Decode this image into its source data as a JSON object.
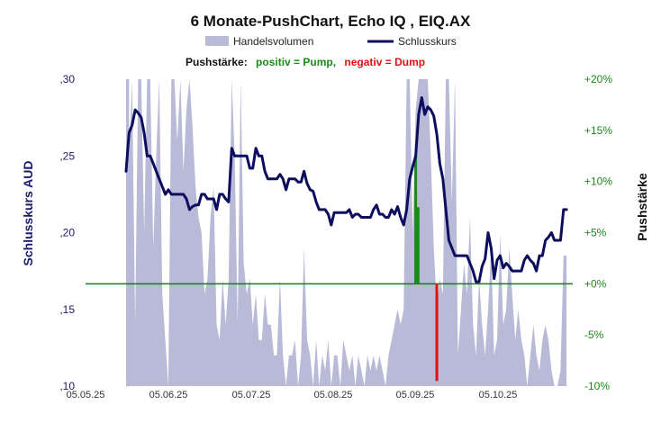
{
  "title": "6 Monate-PushChart,  Echo IQ , EIQ.AX",
  "legend": {
    "volume_label": "Handelsvolumen",
    "price_label": "Schlusskurs",
    "volume_color": "#b9b9d8",
    "price_color": "#0d0d5e"
  },
  "push_legend": {
    "prefix": "Pushstärke:",
    "positive": "positiv = Pump,",
    "negative": "negativ = Dump",
    "positive_color": "#1a8a1a",
    "negative_color": "#e01010"
  },
  "chart_data": {
    "type": "line",
    "title": "6 Monate-PushChart,  Echo IQ , EIQ.AX",
    "ylabel": "Schlusskurs AUD",
    "y2label": "Pushstärke",
    "ylim": [
      0.1,
      0.3
    ],
    "y2lim": [
      -10,
      20
    ],
    "yticks": [
      ",10",
      ",15",
      ",20",
      ",25",
      ",30"
    ],
    "y2ticks": [
      "-10%",
      "-5%",
      "+0%",
      "+5%",
      "+10%",
      "+15%",
      "+20%"
    ],
    "x_ticks": [
      "05.05.25",
      "05.06.25",
      "05.07.25",
      "05.08.25",
      "05.09.25",
      "05.10.25"
    ],
    "zero_line_color": "#1a7a1a",
    "series": [
      {
        "name": "Schlusskurs",
        "type": "line",
        "points": [
          [
            0,
            0.24
          ],
          [
            1,
            0.265
          ],
          [
            2,
            0.27
          ],
          [
            3,
            0.28
          ],
          [
            4,
            0.278
          ],
          [
            5,
            0.275
          ],
          [
            6,
            0.265
          ],
          [
            7,
            0.25
          ],
          [
            8,
            0.25
          ],
          [
            9,
            0.245
          ],
          [
            10,
            0.24
          ],
          [
            11,
            0.235
          ],
          [
            12,
            0.23
          ],
          [
            13,
            0.225
          ],
          [
            14,
            0.228
          ],
          [
            15,
            0.225
          ],
          [
            16,
            0.225
          ],
          [
            17,
            0.225
          ],
          [
            18,
            0.225
          ],
          [
            19,
            0.225
          ],
          [
            20,
            0.222
          ],
          [
            21,
            0.215
          ],
          [
            22,
            0.217
          ],
          [
            23,
            0.218
          ],
          [
            24,
            0.218
          ],
          [
            25,
            0.225
          ],
          [
            26,
            0.225
          ],
          [
            27,
            0.222
          ],
          [
            28,
            0.222
          ],
          [
            29,
            0.222
          ],
          [
            30,
            0.215
          ],
          [
            31,
            0.225
          ],
          [
            32,
            0.225
          ],
          [
            33,
            0.222
          ],
          [
            34,
            0.22
          ],
          [
            35,
            0.255
          ],
          [
            36,
            0.25
          ],
          [
            37,
            0.25
          ],
          [
            38,
            0.25
          ],
          [
            39,
            0.25
          ],
          [
            40,
            0.25
          ],
          [
            41,
            0.242
          ],
          [
            42,
            0.242
          ],
          [
            43,
            0.255
          ],
          [
            44,
            0.25
          ],
          [
            45,
            0.25
          ],
          [
            46,
            0.24
          ],
          [
            47,
            0.235
          ],
          [
            48,
            0.235
          ],
          [
            49,
            0.235
          ],
          [
            50,
            0.235
          ],
          [
            51,
            0.238
          ],
          [
            52,
            0.235
          ],
          [
            53,
            0.228
          ],
          [
            54,
            0.235
          ],
          [
            55,
            0.235
          ],
          [
            56,
            0.235
          ],
          [
            57,
            0.233
          ],
          [
            58,
            0.233
          ],
          [
            59,
            0.24
          ],
          [
            60,
            0.232
          ],
          [
            61,
            0.228
          ],
          [
            62,
            0.227
          ],
          [
            63,
            0.22
          ],
          [
            64,
            0.215
          ],
          [
            65,
            0.215
          ],
          [
            66,
            0.215
          ],
          [
            67,
            0.212
          ],
          [
            68,
            0.205
          ],
          [
            69,
            0.213
          ],
          [
            70,
            0.213
          ],
          [
            71,
            0.213
          ],
          [
            72,
            0.213
          ],
          [
            73,
            0.213
          ],
          [
            74,
            0.215
          ],
          [
            75,
            0.21
          ],
          [
            76,
            0.212
          ],
          [
            77,
            0.212
          ],
          [
            78,
            0.21
          ],
          [
            79,
            0.21
          ],
          [
            80,
            0.21
          ],
          [
            81,
            0.21
          ],
          [
            82,
            0.215
          ],
          [
            83,
            0.218
          ],
          [
            84,
            0.212
          ],
          [
            85,
            0.212
          ],
          [
            86,
            0.21
          ],
          [
            87,
            0.21
          ],
          [
            88,
            0.215
          ],
          [
            89,
            0.212
          ],
          [
            90,
            0.217
          ],
          [
            91,
            0.21
          ],
          [
            92,
            0.205
          ],
          [
            93,
            0.215
          ],
          [
            94,
            0.235
          ],
          [
            95,
            0.243
          ],
          [
            96,
            0.25
          ],
          [
            97,
            0.277
          ],
          [
            98,
            0.288
          ],
          [
            99,
            0.277
          ],
          [
            100,
            0.282
          ],
          [
            101,
            0.28
          ],
          [
            102,
            0.276
          ],
          [
            103,
            0.264
          ],
          [
            104,
            0.245
          ],
          [
            105,
            0.235
          ],
          [
            106,
            0.215
          ],
          [
            107,
            0.195
          ],
          [
            108,
            0.19
          ],
          [
            109,
            0.185
          ],
          [
            110,
            0.185
          ],
          [
            111,
            0.185
          ],
          [
            112,
            0.185
          ],
          [
            113,
            0.185
          ],
          [
            114,
            0.18
          ],
          [
            115,
            0.175
          ],
          [
            116,
            0.168
          ],
          [
            117,
            0.168
          ],
          [
            118,
            0.178
          ],
          [
            119,
            0.183
          ],
          [
            120,
            0.2
          ],
          [
            121,
            0.19
          ],
          [
            122,
            0.17
          ],
          [
            123,
            0.182
          ],
          [
            124,
            0.185
          ],
          [
            125,
            0.177
          ],
          [
            126,
            0.18
          ],
          [
            127,
            0.178
          ],
          [
            128,
            0.175
          ],
          [
            129,
            0.175
          ],
          [
            130,
            0.175
          ],
          [
            131,
            0.175
          ],
          [
            132,
            0.182
          ],
          [
            133,
            0.185
          ],
          [
            134,
            0.182
          ],
          [
            135,
            0.18
          ],
          [
            136,
            0.175
          ],
          [
            137,
            0.185
          ],
          [
            138,
            0.185
          ],
          [
            139,
            0.195
          ],
          [
            140,
            0.197
          ],
          [
            141,
            0.2
          ],
          [
            142,
            0.195
          ],
          [
            143,
            0.195
          ],
          [
            144,
            0.195
          ],
          [
            145,
            0.215
          ],
          [
            146,
            0.215
          ]
        ]
      },
      {
        "name": "Handelsvolumen",
        "type": "area",
        "points": [
          [
            0,
            0.1
          ],
          [
            0,
            0.3
          ],
          [
            1,
            0.3
          ],
          [
            1,
            0.25
          ],
          [
            2,
            0.3
          ],
          [
            3,
            0.14
          ],
          [
            4,
            0.3
          ],
          [
            5,
            0.3
          ],
          [
            6,
            0.2
          ],
          [
            7,
            0.3
          ],
          [
            8,
            0.3
          ],
          [
            9,
            0.19
          ],
          [
            10,
            0.25
          ],
          [
            11,
            0.3
          ],
          [
            12,
            0.16
          ],
          [
            13,
            0.13
          ],
          [
            14,
            0.1
          ],
          [
            15,
            0.3
          ],
          [
            16,
            0.3
          ],
          [
            17,
            0.26
          ],
          [
            18,
            0.3
          ],
          [
            19,
            0.24
          ],
          [
            20,
            0.28
          ],
          [
            21,
            0.3
          ],
          [
            22,
            0.27
          ],
          [
            23,
            0.23
          ],
          [
            24,
            0.21
          ],
          [
            25,
            0.2
          ],
          [
            26,
            0.16
          ],
          [
            27,
            0.17
          ],
          [
            28,
            0.21
          ],
          [
            29,
            0.23
          ],
          [
            30,
            0.14
          ],
          [
            31,
            0.13
          ],
          [
            32,
            0.17
          ],
          [
            33,
            0.14
          ],
          [
            34,
            0.17
          ],
          [
            35,
            0.3
          ],
          [
            36,
            0.25
          ],
          [
            37,
            0.14
          ],
          [
            38,
            0.3
          ],
          [
            39,
            0.18
          ],
          [
            40,
            0.16
          ],
          [
            41,
            0.17
          ],
          [
            42,
            0.14
          ],
          [
            43,
            0.16
          ],
          [
            44,
            0.13
          ],
          [
            45,
            0.13
          ],
          [
            46,
            0.16
          ],
          [
            47,
            0.14
          ],
          [
            48,
            0.14
          ],
          [
            49,
            0.12
          ],
          [
            50,
            0.12
          ],
          [
            51,
            0.17
          ],
          [
            52,
            0.12
          ],
          [
            53,
            0.1
          ],
          [
            54,
            0.12
          ],
          [
            55,
            0.12
          ],
          [
            56,
            0.13
          ],
          [
            57,
            0.1
          ],
          [
            58,
            0.12
          ],
          [
            59,
            0.19
          ],
          [
            60,
            0.13
          ],
          [
            61,
            0.12
          ],
          [
            62,
            0.1
          ],
          [
            63,
            0.13
          ],
          [
            64,
            0.1
          ],
          [
            65,
            0.12
          ],
          [
            66,
            0.11
          ],
          [
            67,
            0.13
          ],
          [
            68,
            0.1
          ],
          [
            69,
            0.12
          ],
          [
            70,
            0.12
          ],
          [
            71,
            0.1
          ],
          [
            72,
            0.13
          ],
          [
            73,
            0.12
          ],
          [
            74,
            0.11
          ],
          [
            75,
            0.12
          ],
          [
            76,
            0.1
          ],
          [
            77,
            0.12
          ],
          [
            78,
            0.11
          ],
          [
            79,
            0.1
          ],
          [
            80,
            0.12
          ],
          [
            81,
            0.11
          ],
          [
            82,
            0.12
          ],
          [
            83,
            0.11
          ],
          [
            84,
            0.12
          ],
          [
            85,
            0.11
          ],
          [
            86,
            0.1
          ],
          [
            87,
            0.12
          ],
          [
            88,
            0.13
          ],
          [
            89,
            0.14
          ],
          [
            90,
            0.15
          ],
          [
            91,
            0.14
          ],
          [
            92,
            0.15
          ],
          [
            93,
            0.3
          ],
          [
            94,
            0.3
          ],
          [
            95,
            0.2
          ],
          [
            96,
            0.28
          ],
          [
            97,
            0.3
          ],
          [
            98,
            0.3
          ],
          [
            99,
            0.3
          ],
          [
            100,
            0.3
          ],
          [
            101,
            0.25
          ],
          [
            102,
            0.19
          ],
          [
            103,
            0.15
          ],
          [
            104,
            0.17
          ],
          [
            105,
            0.16
          ],
          [
            106,
            0.3
          ],
          [
            107,
            0.3
          ],
          [
            108,
            0.22
          ],
          [
            109,
            0.3
          ],
          [
            110,
            0.12
          ],
          [
            111,
            0.15
          ],
          [
            112,
            0.18
          ],
          [
            113,
            0.16
          ],
          [
            114,
            0.21
          ],
          [
            115,
            0.14
          ],
          [
            116,
            0.12
          ],
          [
            117,
            0.17
          ],
          [
            118,
            0.14
          ],
          [
            119,
            0.12
          ],
          [
            120,
            0.15
          ],
          [
            121,
            0.19
          ],
          [
            122,
            0.12
          ],
          [
            123,
            0.13
          ],
          [
            124,
            0.2
          ],
          [
            125,
            0.14
          ],
          [
            126,
            0.15
          ],
          [
            127,
            0.19
          ],
          [
            128,
            0.16
          ],
          [
            129,
            0.13
          ],
          [
            130,
            0.15
          ],
          [
            131,
            0.13
          ],
          [
            132,
            0.12
          ],
          [
            133,
            0.1
          ],
          [
            134,
            0.12
          ],
          [
            135,
            0.14
          ],
          [
            136,
            0.12
          ],
          [
            137,
            0.11
          ],
          [
            138,
            0.13
          ],
          [
            139,
            0.14
          ],
          [
            140,
            0.13
          ],
          [
            141,
            0.11
          ],
          [
            142,
            0.1
          ],
          [
            143,
            0.1
          ],
          [
            144,
            0.11
          ],
          [
            145,
            0.185
          ],
          [
            146,
            0.185
          ],
          [
            146,
            0.1
          ]
        ]
      },
      {
        "name": "Pushstärke",
        "type": "bar",
        "axis": "y2",
        "bars": [
          {
            "x": 96.0,
            "value": 12.5,
            "sign": "positive"
          },
          {
            "x": 96.8,
            "value": 7.5,
            "sign": "positive"
          },
          {
            "x": 103.0,
            "value": -9.5,
            "sign": "negative"
          }
        ]
      }
    ]
  }
}
